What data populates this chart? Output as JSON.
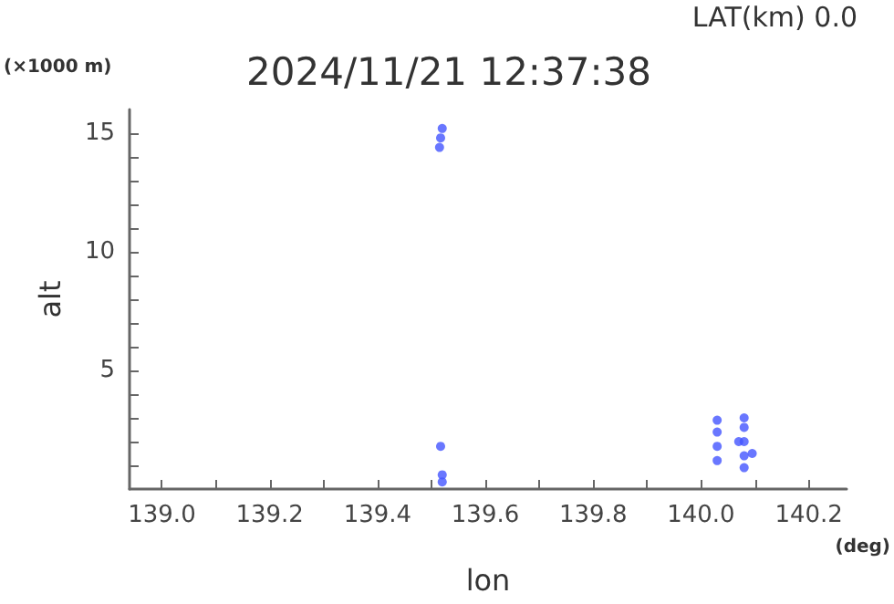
{
  "chart_data": {
    "type": "scatter",
    "title": "2024/11/21 12:37:38",
    "xlabel": "lon",
    "ylabel": "alt",
    "annotations": [
      "LAT(km) 0.0",
      "(×1000 m)",
      "(deg)"
    ],
    "series": [
      {
        "color": "#4455ff",
        "x": [
          139.515,
          139.517,
          139.52,
          139.517,
          139.52,
          139.52,
          140.03,
          140.03,
          140.03,
          140.03,
          140.08,
          140.08,
          140.08,
          140.08,
          140.08,
          140.07,
          140.095
        ],
        "values": [
          14.4,
          14.8,
          15.2,
          1.8,
          0.3,
          0.6,
          1.2,
          1.8,
          2.4,
          2.9,
          0.9,
          1.4,
          2.0,
          2.6,
          3.0,
          2.0,
          1.5
        ]
      }
    ],
    "xlim": [
      138.94,
      140.27
    ],
    "ylim": [
      0,
      16
    ],
    "xticks": [
      {
        "value": 139,
        "label": "139.0"
      },
      {
        "value": 139.1,
        "label": null
      },
      {
        "value": 139.2,
        "label": "139.2"
      },
      {
        "value": 139.3,
        "label": null
      },
      {
        "value": 139.4,
        "label": "139.4"
      },
      {
        "value": 139.5,
        "label": null
      },
      {
        "value": 139.6,
        "label": "139.6"
      },
      {
        "value": 139.7,
        "label": null
      },
      {
        "value": 139.8,
        "label": "139.8"
      },
      {
        "value": 139.9,
        "label": null
      },
      {
        "value": 140,
        "label": "140.0"
      },
      {
        "value": 140.1,
        "label": null
      },
      {
        "value": 140.2,
        "label": "140.2"
      }
    ],
    "yticks": [
      {
        "value": 1,
        "label": null
      },
      {
        "value": 2,
        "label": null
      },
      {
        "value": 3,
        "label": null
      },
      {
        "value": 4,
        "label": null
      },
      5,
      {
        "value": 6,
        "label": null
      },
      {
        "value": 7,
        "label": null
      },
      {
        "value": 8,
        "label": null
      },
      {
        "value": 9,
        "label": null
      },
      10,
      {
        "value": 11,
        "label": null
      },
      {
        "value": 12,
        "label": null
      },
      {
        "value": 13,
        "label": null
      },
      {
        "value": 14,
        "label": null
      },
      15
    ],
    "marker": "circle"
  }
}
